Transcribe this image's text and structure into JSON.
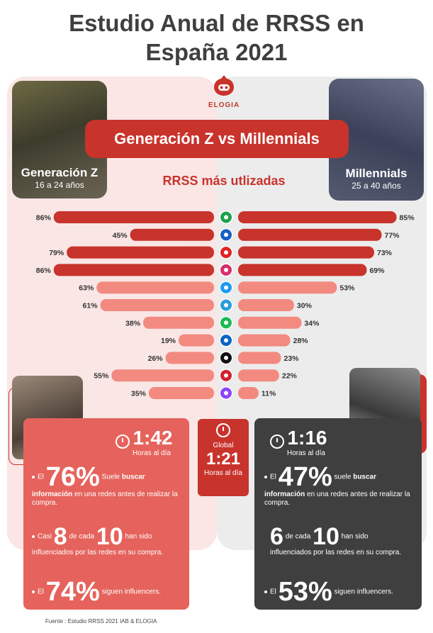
{
  "title_line1": "Estudio Anual de RRSS en",
  "title_line2": "España 2021",
  "logo_text": "ELOGIA",
  "banner": "Generación Z vs Millennials",
  "subtitle": "RRSS más utlizadas",
  "left_group": {
    "name": "Generación Z",
    "age": "16 a 24 años"
  },
  "right_group": {
    "name": "Millennials",
    "age": "25 a 40 años"
  },
  "colors": {
    "strong": "#c8332c",
    "light": "#f28a80",
    "dark": "#3f3f3f"
  },
  "chart_data": {
    "type": "bar",
    "categories": [
      "WhatsApp",
      "Facebook",
      "YouTube",
      "Instagram",
      "Twitter",
      "Telegram",
      "Spotify",
      "LinkedIn",
      "TikTok",
      "Pinterest",
      "Twitch"
    ],
    "icons": [
      "whatsapp-icon",
      "facebook-icon",
      "youtube-icon",
      "instagram-icon",
      "twitter-icon",
      "telegram-icon",
      "spotify-icon",
      "linkedin-icon",
      "tiktok-icon",
      "pinterest-icon",
      "twitch-icon"
    ],
    "icon_colors": [
      "#1fa34a",
      "#1b5fc4",
      "#e02424",
      "#d8306a",
      "#1d9bf0",
      "#2a9ed8",
      "#1db954",
      "#0a66c2",
      "#111111",
      "#d3202f",
      "#8f44fd"
    ],
    "series": [
      {
        "name": "Generación Z",
        "values": [
          86,
          45,
          79,
          86,
          63,
          61,
          38,
          19,
          26,
          55,
          35
        ]
      },
      {
        "name": "Millennials",
        "values": [
          85,
          77,
          73,
          69,
          53,
          30,
          34,
          28,
          23,
          22,
          11
        ]
      }
    ],
    "value_suffix": "%",
    "xlim": [
      0,
      100
    ]
  },
  "left_stats": {
    "time": "1:42",
    "time_label": "Horas al día",
    "s1_prefix": "El",
    "s1_num": "76%",
    "s1_text_a": "Suele",
    "s1_bold": "buscar información",
    "s1_text_b": "en una redes antes de realizar la compra.",
    "s2_prefix": "Casi",
    "s2_num1": "8",
    "s2_mid": "de cada",
    "s2_num2": "10",
    "s2_text_a": "han sido",
    "s2_text_b": "influenciados por las redes en su compra.",
    "s3_prefix": "El",
    "s3_num": "74%",
    "s3_text": "siguen influencers."
  },
  "global": {
    "label": "Global",
    "time": "1:21",
    "time_label": "Horas al día"
  },
  "right_stats": {
    "time": "1:16",
    "time_label": "Horas al día",
    "s1_prefix": "El",
    "s1_num": "47%",
    "s1_text_a": "suele",
    "s1_bold": "buscar información",
    "s1_text_b": "en una redes antes de realizar la compra.",
    "s2_num1": "6",
    "s2_mid": "de cada",
    "s2_num2": "10",
    "s2_text_a": "han sido",
    "s2_text_b": "influenciados por las redes en su compra.",
    "s3_prefix": "El",
    "s3_num": "53%",
    "s3_text": "siguen influencers."
  },
  "source": "Fuente : Estudio RRSS 2021 IAB & ELOGIA"
}
